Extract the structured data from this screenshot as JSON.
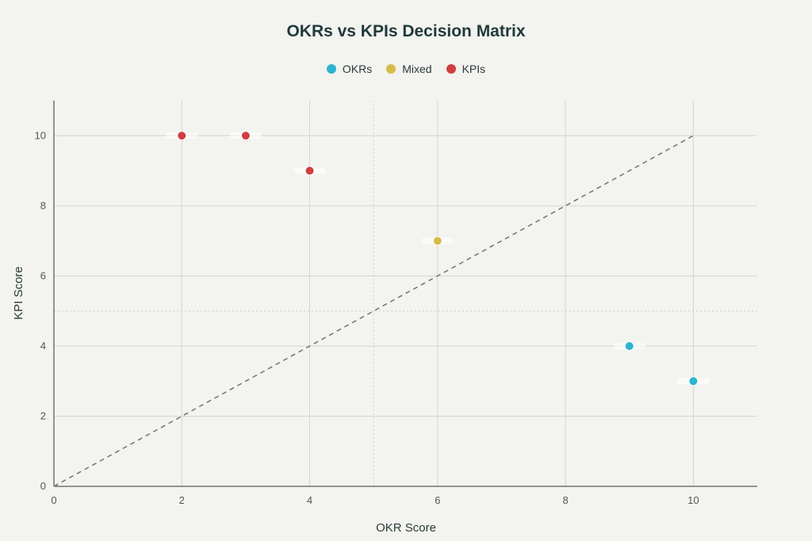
{
  "chart_data": {
    "type": "scatter",
    "title": "OKRs vs KPIs Decision Matrix",
    "xlabel": "OKR Score",
    "ylabel": "KPI Score",
    "xlim": [
      0,
      11
    ],
    "ylim": [
      0,
      11
    ],
    "xticks": [
      "0",
      "2",
      "4",
      "6",
      "8",
      "10"
    ],
    "yticks": [
      "0",
      "2",
      "4",
      "6",
      "8",
      "10"
    ],
    "grid": true,
    "legend_position": "top-center",
    "quadrant_lines": {
      "x": 5,
      "y": 5
    },
    "reference_line": {
      "from": [
        0,
        0
      ],
      "to": [
        10,
        10
      ],
      "style": "dashed"
    },
    "series": [
      {
        "name": "OKRs",
        "color": "#2bb5cf",
        "points": [
          {
            "x": 9,
            "y": 4
          },
          {
            "x": 10,
            "y": 3
          }
        ]
      },
      {
        "name": "Mixed",
        "color": "#d4bd4a",
        "points": [
          {
            "x": 6,
            "y": 7
          }
        ]
      },
      {
        "name": "KPIs",
        "color": "#d13f3f",
        "points": [
          {
            "x": 2,
            "y": 10
          },
          {
            "x": 3,
            "y": 10
          },
          {
            "x": 4,
            "y": 9
          }
        ]
      }
    ]
  }
}
